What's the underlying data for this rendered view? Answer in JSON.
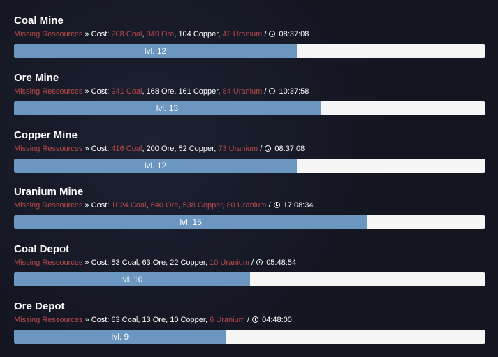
{
  "labels": {
    "missing": "Missing Ressources",
    "sep": " » ",
    "cost": "Cost: ",
    "slash": " / "
  },
  "colors": {
    "missing": "#b94a48",
    "progress": "#6b96c0",
    "track": "#f5f5f5"
  },
  "buildings": [
    {
      "name": "Coal Mine",
      "level": "lvl. 12",
      "progress": 0.6,
      "time": "08:37:08",
      "cost": [
        {
          "text": "208 Coal",
          "missing": true
        },
        {
          "text": "349 Ore",
          "missing": true
        },
        {
          "text": "104 Copper",
          "missing": false
        },
        {
          "text": "42 Uranium",
          "missing": true
        }
      ]
    },
    {
      "name": "Ore Mine",
      "level": "lvl. 13",
      "progress": 0.65,
      "time": "10:37:58",
      "cost": [
        {
          "text": "941 Coal",
          "missing": true
        },
        {
          "text": "168 Ore",
          "missing": false
        },
        {
          "text": "161 Copper",
          "missing": false
        },
        {
          "text": "84 Uranium",
          "missing": true
        }
      ]
    },
    {
      "name": "Copper Mine",
      "level": "lvl. 12",
      "progress": 0.6,
      "time": "08:37:08",
      "cost": [
        {
          "text": "416 Coal",
          "missing": true
        },
        {
          "text": "200 Ore",
          "missing": false
        },
        {
          "text": "52 Copper",
          "missing": false
        },
        {
          "text": "73 Uranium",
          "missing": true
        }
      ]
    },
    {
      "name": "Uranium Mine",
      "level": "lvl. 15",
      "progress": 0.75,
      "time": "17:08:34",
      "cost": [
        {
          "text": "1024 Coal",
          "missing": true
        },
        {
          "text": "640 Ore",
          "missing": true
        },
        {
          "text": "538 Copper",
          "missing": true
        },
        {
          "text": "80 Uranium",
          "missing": true
        }
      ]
    },
    {
      "name": "Coal Depot",
      "level": "lvl. 10",
      "progress": 0.5,
      "time": "05:48:54",
      "cost": [
        {
          "text": "53 Coal",
          "missing": false
        },
        {
          "text": "63 Ore",
          "missing": false
        },
        {
          "text": "22 Copper",
          "missing": false
        },
        {
          "text": "10 Uranium",
          "missing": true
        }
      ]
    },
    {
      "name": "Ore Depot",
      "level": "lvl. 9",
      "progress": 0.45,
      "time": "04:48:00",
      "cost": [
        {
          "text": "63 Coal",
          "missing": false
        },
        {
          "text": "13 Ore",
          "missing": false
        },
        {
          "text": "10 Copper",
          "missing": false
        },
        {
          "text": "6 Uranium",
          "missing": true
        }
      ]
    }
  ]
}
